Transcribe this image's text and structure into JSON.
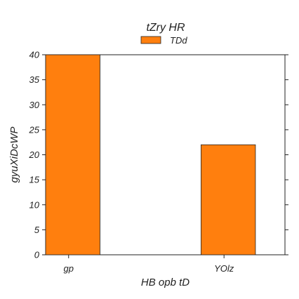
{
  "chart_data": {
    "type": "bar",
    "title": "tZry HR",
    "xlabel": "HB opb tD",
    "ylabel": "gyuXiDcWP",
    "categories": [
      "gp",
      "YOlz"
    ],
    "series": [
      {
        "name": "TDd",
        "values": [
          40,
          22
        ],
        "color": "#ff7f0e"
      }
    ],
    "ylim": [
      0,
      40
    ],
    "yticks": [
      "0",
      "5",
      "10",
      "15",
      "20",
      "25",
      "30",
      "35",
      "40"
    ],
    "grid": false,
    "legend_position": "top-center"
  }
}
